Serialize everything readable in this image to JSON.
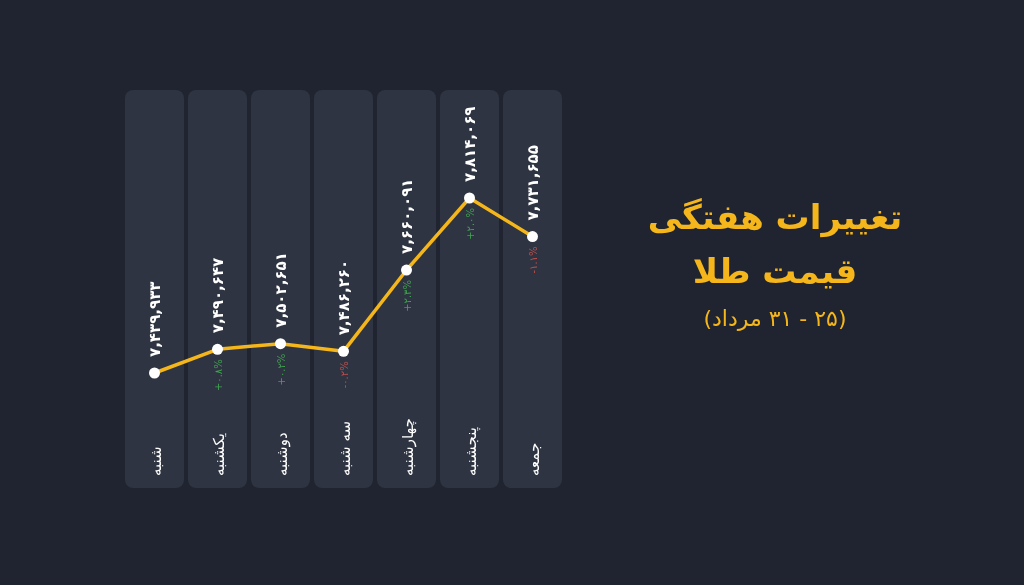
{
  "chart_data": {
    "type": "line",
    "title": "تغییرات هفتگی قیمت طلا",
    "subtitle": "(۲۵ - ۳۱ مرداد)",
    "categories": [
      "شنبه",
      "یکشنبه",
      "دوشنبه",
      "سه شنبه",
      "چهارشنبه",
      "پنجشنبه",
      "جمعه"
    ],
    "series": [
      {
        "color": "#f5b61b",
        "values": [
          7439933,
          7490647,
          7502651,
          7486260,
          7660091,
          7814069,
          7731655
        ],
        "value_labels": [
          "۷,۴۳۹,۹۳۳",
          "۷,۴۹۰,۶۴۷",
          "۷,۵۰۲,۶۵۱",
          "۷,۴۸۶,۲۶۰",
          "۷,۶۶۰,۰۹۱",
          "۷,۸۱۴,۰۶۹",
          "۷,۷۳۱,۶۵۵"
        ]
      }
    ],
    "annotations": [
      {
        "text": "+۰.۸%",
        "x": "یکشنبه",
        "y": 7490647
      },
      {
        "text": "+۰.۲%",
        "x": "دوشنبه",
        "y": 7502651
      },
      {
        "text": "-۰.۲%",
        "x": "سه شنبه",
        "y": 7486260
      },
      {
        "text": "+۲.۳%",
        "x": "چهارشنبه",
        "y": 7660091
      },
      {
        "text": "+۲.۰%",
        "x": "پنجشنبه",
        "y": 7814069
      },
      {
        "text": "-۱.۱%",
        "x": "جمعه",
        "y": 7731655
      }
    ],
    "bands": [
      {
        "axis": "x",
        "from": "شنبه",
        "to": "شنبه",
        "color": "#2e3441"
      },
      {
        "axis": "x",
        "from": "یکشنبه",
        "to": "یکشنبه",
        "color": "#2e3441"
      },
      {
        "axis": "x",
        "from": "دوشنبه",
        "to": "دوشنبه",
        "color": "#2e3441"
      },
      {
        "axis": "x",
        "from": "سه شنبه",
        "to": "سه شنبه",
        "color": "#2e3441"
      },
      {
        "axis": "x",
        "from": "چهارشنبه",
        "to": "چهارشنبه",
        "color": "#2e3441"
      },
      {
        "axis": "x",
        "from": "پنجشنبه",
        "to": "پنجشنبه",
        "color": "#2e3441"
      },
      {
        "axis": "x",
        "from": "جمعه",
        "to": "جمعه",
        "color": "#2e3441"
      }
    ],
    "marker": "circle",
    "line_style": "solid"
  }
}
